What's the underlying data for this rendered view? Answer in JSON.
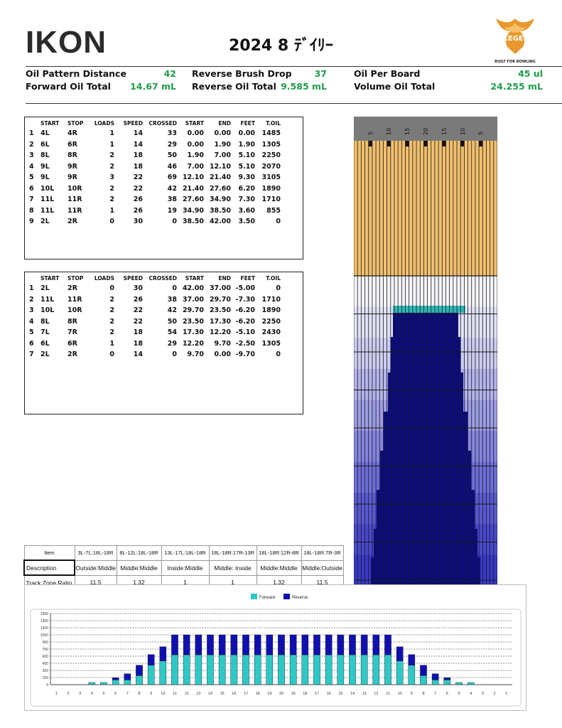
{
  "header": {
    "logo_text": "IKON",
    "title": "2024 8 ﾃﾞｲﾘｰ",
    "kegel_text": "KEGEL",
    "kegel_sub": "BUILT FOR BOWLING"
  },
  "summary": [
    {
      "label": "Oil Pattern Distance",
      "value": "42"
    },
    {
      "label": "Reverse Brush Drop",
      "value": "37"
    },
    {
      "label": "Oil Per Board",
      "value": "45 ul"
    },
    {
      "label": "Forward Oil Total",
      "value": "14.67 mL"
    },
    {
      "label": "Reverse Oil Total",
      "value": "9.585 mL"
    },
    {
      "label": "Volume Oil Total",
      "value": "24.255 mL"
    }
  ],
  "table_headers": [
    "START",
    "STOP",
    "LOADS",
    "SPEED",
    "CROSSED",
    "START",
    "END",
    "FEET",
    "T.OIL"
  ],
  "forward_rows": [
    [
      "1",
      "4L",
      "4R",
      "1",
      "14",
      "33",
      "0.00",
      "0.00",
      "0.00",
      "1485"
    ],
    [
      "2",
      "6L",
      "6R",
      "1",
      "14",
      "29",
      "0.00",
      "1.90",
      "1.90",
      "1305"
    ],
    [
      "3",
      "8L",
      "8R",
      "2",
      "18",
      "50",
      "1.90",
      "7.00",
      "5.10",
      "2250"
    ],
    [
      "4",
      "9L",
      "9R",
      "2",
      "18",
      "46",
      "7.00",
      "12.10",
      "5.10",
      "2070"
    ],
    [
      "5",
      "9L",
      "9R",
      "3",
      "22",
      "69",
      "12.10",
      "21.40",
      "9.30",
      "3105"
    ],
    [
      "6",
      "10L",
      "10R",
      "2",
      "22",
      "42",
      "21.40",
      "27.60",
      "6.20",
      "1890"
    ],
    [
      "7",
      "11L",
      "11R",
      "2",
      "26",
      "38",
      "27.60",
      "34.90",
      "7.30",
      "1710"
    ],
    [
      "8",
      "11L",
      "11R",
      "1",
      "26",
      "19",
      "34.90",
      "38.50",
      "3.60",
      "855"
    ],
    [
      "9",
      "2L",
      "2R",
      "0",
      "30",
      "0",
      "38.50",
      "42.00",
      "3.50",
      "0"
    ]
  ],
  "reverse_rows": [
    [
      "1",
      "2L",
      "2R",
      "0",
      "30",
      "0",
      "42.00",
      "37.00",
      "-5.00",
      "0"
    ],
    [
      "2",
      "11L",
      "11R",
      "2",
      "26",
      "38",
      "37.00",
      "29.70",
      "-7.30",
      "1710"
    ],
    [
      "3",
      "10L",
      "10R",
      "2",
      "22",
      "42",
      "29.70",
      "23.50",
      "-6.20",
      "1890"
    ],
    [
      "4",
      "8L",
      "8R",
      "2",
      "22",
      "50",
      "23.50",
      "17.30",
      "-6.20",
      "2250"
    ],
    [
      "5",
      "7L",
      "7R",
      "2",
      "18",
      "54",
      "17.30",
      "12.20",
      "-5.10",
      "2430"
    ],
    [
      "6",
      "6L",
      "6R",
      "1",
      "18",
      "29",
      "12.20",
      "9.70",
      "-2.50",
      "1305"
    ],
    [
      "7",
      "2L",
      "2R",
      "0",
      "14",
      "0",
      "9.70",
      "0.00",
      "-9.70",
      "0"
    ]
  ],
  "lane_graphic": {
    "arrow_labels": [
      "5",
      "10",
      "15",
      "20",
      "15",
      "10",
      "5"
    ],
    "colors": {
      "top_band": "#f1bf6d",
      "lines": "#1a1a1a",
      "gray_header": "#7a7a7a",
      "forward_teal": "#2fb8b6",
      "deep_navy": "#0b0b80"
    }
  },
  "item_table": {
    "columns": [
      "Item",
      "3L-7L:18L-18R",
      "8L-12L:18L-18R",
      "13L-17L:18L-18R",
      "18L-18R:17R-13R",
      "18L-18R:12R-8R",
      "18L-18R:7R-3R"
    ],
    "rows": [
      [
        "Description",
        "Outside:Middle",
        "Middle:Middle",
        "Inside:Middle",
        "Middle: Inside",
        "Middle:Middle",
        "Middle:Outside"
      ],
      [
        "Track Zone Ratio",
        "11.5",
        "1.32",
        "1",
        "1",
        "1.32",
        "11.5"
      ]
    ]
  },
  "chart_data": {
    "type": "bar",
    "stacked": true,
    "legend": [
      "Forward",
      "Reverse"
    ],
    "legend_position": "top-center",
    "colors": {
      "Forward": "#2ec9c6",
      "Reverse": "#1010b0"
    },
    "ylim": [
      0,
      1500
    ],
    "yticks": [
      0,
      150,
      300,
      450,
      600,
      750,
      900,
      1050,
      1200,
      1350,
      1500
    ],
    "grid": true,
    "categories": [
      "1",
      "2",
      "3",
      "4",
      "5",
      "6",
      "7",
      "8",
      "9",
      "10",
      "11",
      "12",
      "13",
      "14",
      "15",
      "16",
      "17",
      "18",
      "19",
      "20",
      "19",
      "18",
      "17",
      "16",
      "15",
      "14",
      "13",
      "12",
      "11",
      "10",
      "9",
      "8",
      "7",
      "6",
      "5",
      "4",
      "3",
      "2",
      "1"
    ],
    "series": [
      {
        "name": "Forward",
        "values": [
          0,
          0,
          0,
          45,
          45,
          100,
          100,
          190,
          410,
          500,
          630,
          630,
          630,
          630,
          630,
          630,
          630,
          630,
          630,
          630,
          630,
          630,
          630,
          630,
          630,
          630,
          630,
          630,
          630,
          500,
          410,
          190,
          100,
          100,
          45,
          45,
          0,
          0,
          0
        ]
      },
      {
        "name": "Reverse",
        "values": [
          0,
          0,
          0,
          0,
          0,
          45,
          130,
          220,
          225,
          300,
          420,
          420,
          420,
          420,
          420,
          420,
          420,
          420,
          420,
          420,
          420,
          420,
          420,
          420,
          420,
          420,
          420,
          420,
          420,
          300,
          225,
          220,
          130,
          45,
          0,
          0,
          0,
          0,
          0
        ]
      }
    ]
  }
}
